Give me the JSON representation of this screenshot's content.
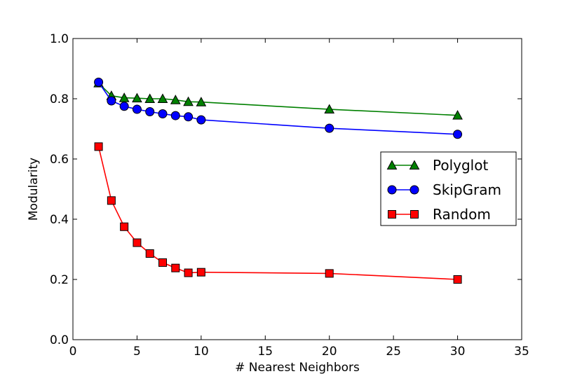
{
  "chart_data": {
    "type": "line",
    "title": "",
    "xlabel": "# Nearest Neighbors",
    "ylabel": "Modularity",
    "xlim": [
      0,
      35
    ],
    "ylim": [
      0.0,
      1.0
    ],
    "xticks": [
      0,
      5,
      10,
      15,
      20,
      25,
      30,
      35
    ],
    "yticks": [
      0.0,
      0.2,
      0.4,
      0.6,
      0.8,
      1.0
    ],
    "xtick_labels": [
      "0",
      "5",
      "10",
      "15",
      "20",
      "25",
      "30",
      "35"
    ],
    "ytick_labels": [
      "0.0",
      "0.2",
      "0.4",
      "0.6",
      "0.8",
      "1.0"
    ],
    "grid": false,
    "legend_position": "center-right",
    "x": [
      2,
      3,
      4,
      5,
      6,
      7,
      8,
      9,
      10,
      20,
      30
    ],
    "series": [
      {
        "name": "Polyglot",
        "color": "#008000",
        "marker": "triangle",
        "values": [
          0.852,
          0.81,
          0.803,
          0.802,
          0.8,
          0.8,
          0.796,
          0.79,
          0.789,
          0.765,
          0.745
        ]
      },
      {
        "name": "SkipGram",
        "color": "#0000ff",
        "marker": "circle",
        "values": [
          0.855,
          0.793,
          0.775,
          0.765,
          0.757,
          0.75,
          0.744,
          0.74,
          0.73,
          0.702,
          0.682
        ]
      },
      {
        "name": "Random",
        "color": "#ff0000",
        "marker": "square",
        "values": [
          0.641,
          0.462,
          0.375,
          0.322,
          0.286,
          0.256,
          0.238,
          0.222,
          0.224,
          0.22,
          0.2
        ]
      }
    ]
  }
}
